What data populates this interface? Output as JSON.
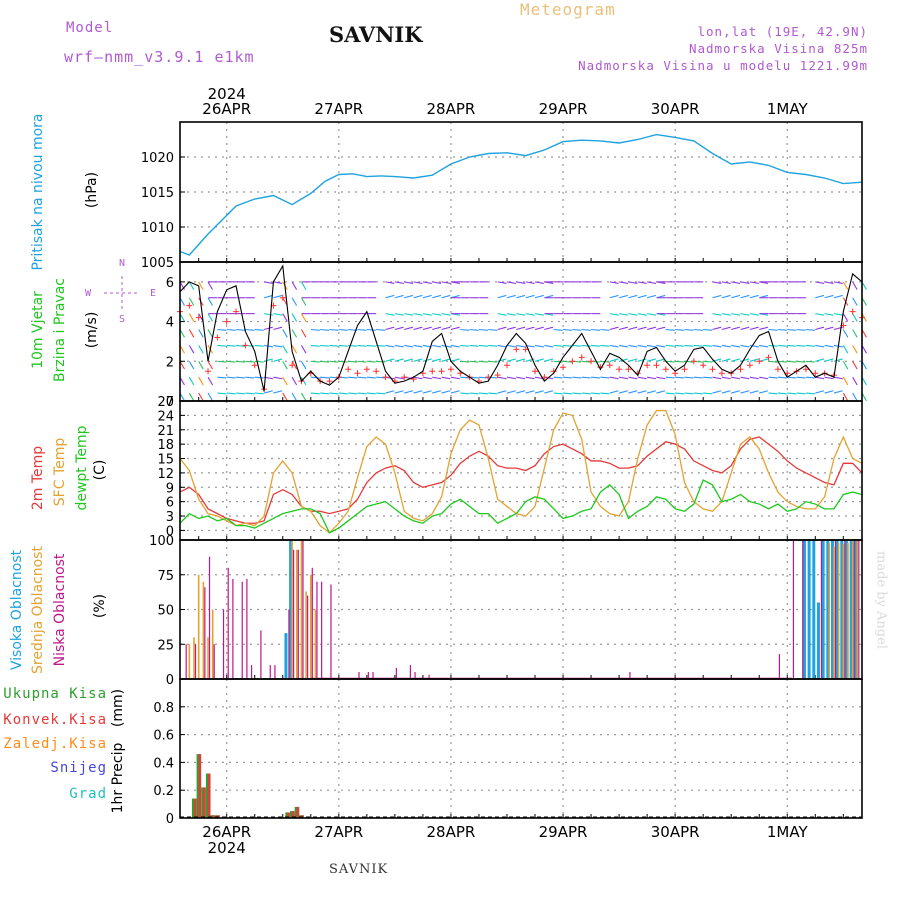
{
  "header": {
    "model_label": "Model",
    "model_name": "wrf–nmm_v3.9.1  e1km",
    "station": "SAVNIK",
    "product": "Meteogram",
    "lonlat": "lon,lat (19E, 42.9N)",
    "altitude": "Nadmorska Visina 825m",
    "model_altitude": "Nadmorska Visina u modelu 1221.99m"
  },
  "footer": {
    "station": "SAVNIK",
    "credit": "made by Angel"
  },
  "colors": {
    "pressure": "#1ea3e0",
    "wind_speed": "#000000",
    "wind_gust": "#ff3030",
    "t2m": "#e53a3a",
    "sfc": "#e2a331",
    "dewpt": "#1ec81e",
    "high_cloud": "#1ea3e0",
    "mid_cloud": "#e2a331",
    "low_cloud": "#c0168a",
    "total_precip": "#2ea02e",
    "conv_precip": "#e53a3a",
    "frozen": "#ff8c1a",
    "snow": "#4646e0",
    "graupel": "#20c0c0"
  },
  "chart_data": [
    {
      "type": "line",
      "name": "pressure",
      "ylabel": "Pritisak na nivou mora",
      "unit": "(hPa)",
      "ylim": [
        1005,
        1025
      ],
      "yticks": [
        1005,
        1010,
        1015,
        1020
      ],
      "xlim": [
        0,
        146
      ],
      "grid": true,
      "top_date_labels": [
        "26APR",
        "27APR",
        "28APR",
        "29APR",
        "30APR",
        "1MAY"
      ],
      "year_label": "2024",
      "x": [
        0,
        2,
        4,
        6,
        9,
        12,
        16,
        20,
        24,
        28,
        31,
        34,
        37,
        40,
        43,
        46,
        50,
        54,
        58,
        62,
        66,
        70,
        74,
        78,
        82,
        86,
        90,
        94,
        98,
        102,
        106,
        110,
        114,
        118,
        122,
        126,
        130,
        134,
        138,
        142,
        146
      ],
      "values": [
        1006.5,
        1006.0,
        1007.5,
        1009.0,
        1011.0,
        1013.0,
        1014.0,
        1014.5,
        1013.2,
        1014.8,
        1016.5,
        1017.5,
        1017.6,
        1017.2,
        1017.3,
        1017.2,
        1017.0,
        1017.4,
        1019.0,
        1020.0,
        1020.5,
        1020.6,
        1020.2,
        1021.0,
        1022.2,
        1022.4,
        1022.3,
        1022.0,
        1022.5,
        1023.2,
        1022.8,
        1022.3,
        1020.5,
        1019.0,
        1019.3,
        1018.8,
        1017.8,
        1017.5,
        1017.0,
        1016.2,
        1016.4
      ]
    },
    {
      "type": "line",
      "name": "wind",
      "ylabel_lines": [
        "10m Vjetar",
        "Brzina i Pravac"
      ],
      "unit": "(m/s)",
      "direction_legend": [
        "N",
        "E",
        "S",
        "W"
      ],
      "ylim": [
        0,
        7
      ],
      "yticks": [
        0,
        2,
        4,
        6
      ],
      "xlim": [
        0,
        146
      ],
      "grid": true,
      "x": [
        0,
        2,
        4,
        6,
        8,
        10,
        12,
        14,
        16,
        18,
        20,
        22,
        24,
        26,
        28,
        30,
        32,
        34,
        36,
        38,
        40,
        42,
        44,
        46,
        48,
        50,
        52,
        54,
        56,
        58,
        60,
        62,
        64,
        66,
        68,
        70,
        72,
        74,
        76,
        78,
        80,
        82,
        84,
        86,
        88,
        90,
        92,
        94,
        96,
        98,
        100,
        102,
        104,
        106,
        108,
        110,
        112,
        114,
        116,
        118,
        120,
        122,
        124,
        126,
        128,
        130,
        132,
        134,
        136,
        138,
        140,
        142,
        144,
        146
      ],
      "values": [
        5.5,
        6.0,
        5.8,
        2.0,
        4.5,
        5.6,
        5.8,
        3.5,
        2.5,
        0.5,
        6.0,
        6.8,
        2.5,
        1.0,
        1.5,
        1.0,
        0.8,
        1.2,
        2.5,
        3.8,
        4.5,
        3.0,
        1.5,
        0.9,
        1.0,
        1.2,
        1.5,
        3.0,
        3.4,
        2.0,
        1.5,
        1.2,
        0.9,
        1.0,
        1.8,
        2.8,
        3.4,
        2.9,
        1.8,
        1.0,
        1.4,
        2.2,
        2.8,
        3.4,
        2.5,
        1.6,
        2.4,
        2.2,
        1.8,
        1.3,
        2.5,
        2.7,
        2.0,
        1.5,
        1.8,
        2.6,
        2.7,
        2.1,
        1.6,
        1.4,
        1.8,
        2.6,
        3.3,
        3.5,
        2.0,
        1.2,
        1.5,
        1.8,
        1.2,
        1.4,
        1.2,
        4.5,
        6.4,
        6.0
      ],
      "gust": [
        4.5,
        4.8,
        4.2,
        1.5,
        3.2,
        4.0,
        4.5,
        2.8,
        1.8,
        0.6,
        4.8,
        5.2,
        1.8,
        1.0,
        1.4,
        1.0,
        1.0,
        1.2,
        1.6,
        1.4,
        1.6,
        1.5,
        1.2,
        1.0,
        1.2,
        1.1,
        1.4,
        1.5,
        1.5,
        1.6,
        1.4,
        1.2,
        1.0,
        1.2,
        1.3,
        1.8,
        2.6,
        2.6,
        1.5,
        1.2,
        1.5,
        1.7,
        2.0,
        2.2,
        2.0,
        1.7,
        1.8,
        1.6,
        1.6,
        1.4,
        1.8,
        1.8,
        1.6,
        1.4,
        1.6,
        2.0,
        1.8,
        1.6,
        1.4,
        1.4,
        1.6,
        1.8,
        2.0,
        2.2,
        1.6,
        1.4,
        1.5,
        1.6,
        1.4,
        1.4,
        1.3,
        3.8,
        4.5,
        4.2
      ]
    },
    {
      "type": "line",
      "name": "temperature",
      "ylabel_lines": [
        "2m Temp",
        "SFC Temp",
        "dewpt Temp"
      ],
      "unit": "(C)",
      "ylim": [
        -2,
        27
      ],
      "yticks": [
        0,
        3,
        6,
        9,
        12,
        15,
        18,
        21,
        24,
        27
      ],
      "xlim": [
        0,
        146
      ],
      "grid": true,
      "series": [
        {
          "name": "2m Temp",
          "x": [
            0,
            2,
            4,
            6,
            8,
            10,
            12,
            14,
            16,
            18,
            20,
            22,
            24,
            26,
            28,
            30,
            32,
            34,
            36,
            38,
            40,
            42,
            44,
            46,
            48,
            50,
            52,
            54,
            56,
            58,
            60,
            62,
            64,
            66,
            68,
            70,
            72,
            74,
            76,
            78,
            80,
            82,
            84,
            86,
            88,
            90,
            92,
            94,
            96,
            98,
            100,
            102,
            104,
            106,
            108,
            110,
            112,
            114,
            116,
            118,
            120,
            122,
            124,
            126,
            128,
            130,
            132,
            134,
            136,
            138,
            140,
            142,
            144,
            146
          ],
          "values": [
            8.0,
            9.0,
            7.5,
            4.5,
            3.5,
            2.5,
            2.0,
            1.5,
            1.5,
            2.0,
            7.5,
            8.5,
            7.5,
            5.0,
            4.0,
            4.0,
            3.5,
            4.0,
            4.5,
            6.5,
            10.0,
            12.0,
            13.0,
            13.5,
            12.5,
            10.0,
            9.0,
            9.5,
            10.0,
            11.5,
            14.0,
            15.5,
            16.5,
            15.5,
            13.5,
            13.0,
            13.0,
            12.5,
            13.5,
            16.0,
            17.5,
            18.0,
            17.0,
            16.0,
            14.5,
            14.5,
            14.0,
            13.0,
            13.0,
            13.5,
            15.5,
            17.0,
            18.5,
            18.0,
            17.0,
            14.5,
            13.5,
            12.5,
            12.0,
            13.5,
            17.0,
            19.0,
            19.5,
            18.0,
            16.5,
            14.5,
            13.0,
            12.0,
            11.0,
            10.0,
            9.5,
            14.0,
            14.0,
            12.0
          ]
        },
        {
          "name": "SFC Temp",
          "x": [
            0,
            2,
            4,
            6,
            8,
            10,
            12,
            14,
            16,
            18,
            20,
            22,
            24,
            26,
            28,
            30,
            32,
            34,
            36,
            38,
            40,
            42,
            44,
            46,
            48,
            50,
            52,
            54,
            56,
            58,
            60,
            62,
            64,
            66,
            68,
            70,
            72,
            74,
            76,
            78,
            80,
            82,
            84,
            86,
            88,
            90,
            92,
            94,
            96,
            98,
            100,
            102,
            104,
            106,
            108,
            110,
            112,
            114,
            116,
            118,
            120,
            122,
            124,
            126,
            128,
            130,
            132,
            134,
            136,
            138,
            140,
            142,
            144,
            146
          ],
          "values": [
            15.0,
            12.5,
            6.5,
            3.5,
            3.0,
            2.0,
            1.0,
            1.5,
            1.0,
            3.0,
            12.0,
            14.5,
            12.0,
            5.0,
            4.0,
            1.0,
            -0.5,
            1.5,
            4.0,
            11.0,
            17.5,
            19.5,
            18.0,
            12.0,
            4.0,
            2.5,
            2.0,
            3.5,
            7.0,
            16.0,
            21.0,
            23.0,
            22.0,
            15.0,
            6.5,
            5.0,
            3.5,
            3.0,
            5.0,
            13.0,
            21.0,
            24.5,
            24.0,
            19.0,
            8.0,
            5.0,
            3.5,
            3.0,
            6.0,
            15.0,
            22.0,
            25.0,
            25.0,
            20.0,
            10.0,
            6.0,
            4.5,
            4.0,
            6.0,
            12.0,
            18.0,
            19.5,
            17.0,
            12.0,
            8.0,
            6.0,
            5.0,
            4.5,
            4.5,
            7.0,
            15.0,
            19.5,
            15.0,
            14.0
          ]
        },
        {
          "name": "dewpt Temp",
          "x": [
            0,
            2,
            4,
            6,
            8,
            10,
            12,
            14,
            16,
            18,
            20,
            22,
            24,
            26,
            28,
            30,
            32,
            34,
            36,
            38,
            40,
            42,
            44,
            46,
            48,
            50,
            52,
            54,
            56,
            58,
            60,
            62,
            64,
            66,
            68,
            70,
            72,
            74,
            76,
            78,
            80,
            82,
            84,
            86,
            88,
            90,
            92,
            94,
            96,
            98,
            100,
            102,
            104,
            106,
            108,
            110,
            112,
            114,
            116,
            118,
            120,
            122,
            124,
            126,
            128,
            130,
            132,
            134,
            136,
            138,
            140,
            142,
            144,
            146
          ],
          "values": [
            1.5,
            3.5,
            2.5,
            3.0,
            2.0,
            2.5,
            1.0,
            1.0,
            0.5,
            1.5,
            2.5,
            3.5,
            4.0,
            4.5,
            4.5,
            3.5,
            -0.5,
            0.5,
            2.0,
            3.5,
            5.0,
            5.5,
            6.0,
            4.5,
            3.0,
            2.0,
            1.5,
            3.0,
            3.5,
            5.5,
            6.5,
            5.0,
            3.5,
            3.5,
            1.5,
            2.5,
            3.5,
            6.0,
            7.0,
            6.5,
            4.5,
            2.5,
            3.0,
            4.0,
            4.5,
            8.0,
            9.5,
            7.5,
            2.5,
            4.0,
            5.0,
            7.0,
            6.5,
            4.5,
            4.0,
            5.5,
            10.5,
            9.5,
            6.0,
            6.5,
            7.5,
            6.0,
            5.5,
            4.5,
            5.5,
            4.0,
            4.5,
            6.0,
            5.5,
            4.5,
            4.5,
            7.5,
            8.0,
            7.5
          ]
        }
      ]
    },
    {
      "type": "bar",
      "name": "cloudiness",
      "ylabel_lines": [
        "Visoka Oblacnost",
        "Srednja Oblacnost",
        "Niska Oblacnost"
      ],
      "unit": "(%)",
      "ylim": [
        0,
        100
      ],
      "yticks": [
        0,
        25,
        50,
        75,
        100
      ],
      "xlim": [
        0,
        146
      ],
      "grid": true,
      "series": [
        {
          "name": "Visoka Oblacnost",
          "x": [
            23,
            24,
            134,
            135,
            136,
            137,
            138,
            139,
            140,
            141,
            142,
            143,
            144,
            145
          ],
          "values": [
            33,
            100,
            100,
            100,
            100,
            55,
            100,
            100,
            100,
            100,
            100,
            100,
            100,
            100
          ]
        },
        {
          "name": "Srednja Oblacnost",
          "x": [
            2,
            3,
            4,
            5,
            6,
            7,
            24,
            25,
            26,
            27,
            28,
            29,
            139,
            140,
            141,
            142,
            143,
            144,
            145
          ],
          "values": [
            25,
            30,
            75,
            70,
            30,
            50,
            100,
            93,
            100,
            63,
            75,
            50,
            98,
            95,
            98,
            97,
            98,
            99,
            100
          ]
        },
        {
          "name": "Niska Oblacnost",
          "x": [
            1,
            3,
            5,
            6,
            7,
            9,
            10,
            11,
            13,
            14,
            15,
            17,
            19,
            20,
            23,
            24,
            25,
            26,
            27,
            28,
            29,
            30,
            32,
            38,
            40,
            41,
            46,
            49,
            50,
            53,
            96,
            128,
            131,
            133,
            137,
            140,
            142,
            144,
            145
          ],
          "values": [
            25,
            25,
            66,
            88,
            25,
            50,
            80,
            72,
            70,
            72,
            10,
            35,
            10,
            10,
            50,
            93,
            93,
            100,
            60,
            80,
            70,
            70,
            68,
            5,
            5,
            5,
            8,
            10,
            5,
            3,
            5,
            18,
            100,
            100,
            100,
            100,
            100,
            100,
            100
          ]
        }
      ]
    },
    {
      "type": "bar",
      "name": "precipitation",
      "ylabel": "1hr Precip",
      "unit": "(mm)",
      "legend": [
        "Ukupna  Kisa",
        "Konvek.Kisa",
        "Zaledj.Kisa",
        "Snijeg",
        "Grad"
      ],
      "ylim": [
        0,
        1
      ],
      "yticks": [
        0,
        0.2,
        0.4,
        0.6,
        0.8
      ],
      "xlim": [
        0,
        146
      ],
      "grid": true,
      "bottom_date_labels": [
        "26APR",
        "27APR",
        "28APR",
        "29APR",
        "30APR",
        "1MAY"
      ],
      "year_label": "2024",
      "series": [
        {
          "name": "Ukupna  Kisa",
          "x": [
            3,
            4,
            5,
            6,
            7,
            8,
            23,
            24,
            25,
            26
          ],
          "values": [
            0.14,
            0.46,
            0.22,
            0.32,
            0.02,
            0.02,
            0.04,
            0.05,
            0.08,
            0.02
          ]
        },
        {
          "name": "Konvek.Kisa",
          "x": [
            3,
            4,
            5,
            6,
            7,
            8,
            23,
            24,
            25,
            26
          ],
          "values": [
            0.14,
            0.46,
            0.22,
            0.32,
            0.02,
            0.02,
            0.04,
            0.05,
            0.08,
            0.02
          ]
        }
      ]
    }
  ]
}
